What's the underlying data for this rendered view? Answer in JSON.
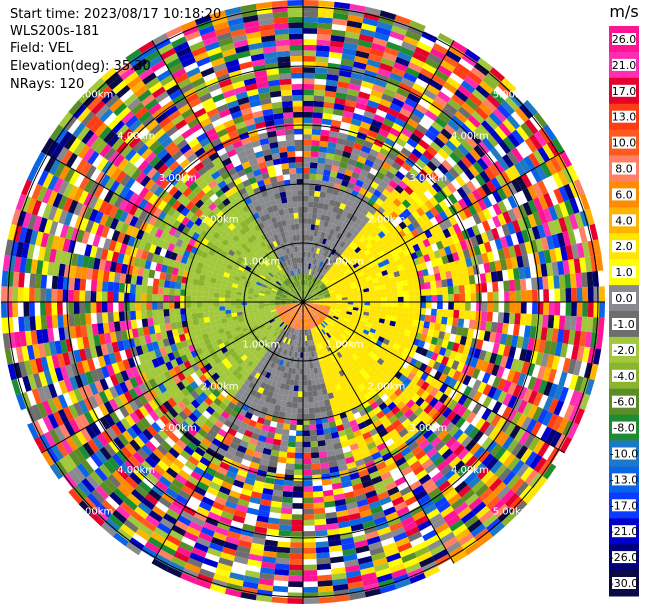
{
  "header": {
    "start_time": "Start time: 2023/08/17 10:18:20",
    "instrument": "WLS200s-181",
    "field": "Field: VEL",
    "elevation": "Elevation(deg): 35.30",
    "nrays": "NRays: 120"
  },
  "chart_data": {
    "type": "heatmap",
    "projection": "polar-ppi",
    "field": "VEL",
    "units": "m/s",
    "nrays": 120,
    "elevation_deg": 35.3,
    "range_rings": [
      {
        "label": "1.00km"
      },
      {
        "label": "2.00km"
      },
      {
        "label": "3.00km"
      },
      {
        "label": "4.00km"
      },
      {
        "label": "5.00km"
      }
    ],
    "colorbar": {
      "title": "m/s",
      "ticks": [
        "26.0",
        "21.0",
        "17.0",
        "13.0",
        "10.0",
        "8.0",
        "6.0",
        "4.0",
        "2.0",
        "1.0",
        "0.0",
        "-1.0",
        "-2.0",
        "-4.0",
        "-6.0",
        "-8.0",
        "-10.0",
        "-13.0",
        "-17.0",
        "-21.0",
        "-26.0",
        "-30.0"
      ],
      "colors": [
        "#ff1493",
        "#ff2db4",
        "#e6002e",
        "#ff3c14",
        "#ff5a1e",
        "#ff8064",
        "#ff8c00",
        "#ffb400",
        "#ffe600",
        "#ffff00",
        "#888a8f",
        "#6e6e6e",
        "#a2c83c",
        "#8ab42e",
        "#5a8c28",
        "#1e8c32",
        "#1e78c8",
        "#0a64e6",
        "#0a3cff",
        "#0000cd",
        "#00007a",
        "#0a0a46"
      ]
    },
    "data_pattern": "central ~2km region: yellow (positive) to the east/south-east, green (negative) to the west, gray (~0) to the north; beyond ~2.6km mostly noisy multicolor range gates"
  }
}
